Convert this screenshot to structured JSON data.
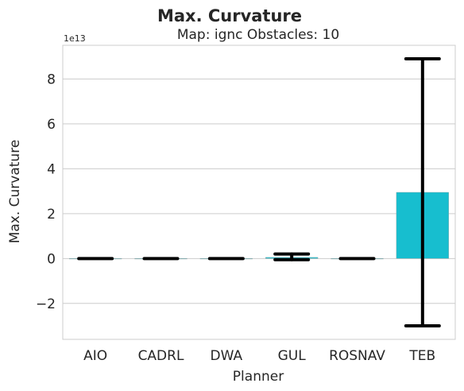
{
  "chart_data": {
    "type": "bar",
    "title": "Max. Curvature",
    "subtitle": "Map: ignc Obstacles: 10",
    "xlabel": "Planner",
    "ylabel": "Max. Curvature",
    "y_offset_label": "1e13",
    "categories": [
      "AIO",
      "CADRL",
      "DWA",
      "GUL",
      "ROSNAV",
      "TEB"
    ],
    "values": [
      0,
      0,
      0,
      0.05,
      0,
      2.95
    ],
    "error_low": [
      0,
      0,
      0,
      -0.05,
      0,
      -3.0
    ],
    "error_high": [
      0,
      0,
      0,
      0.2,
      0,
      8.9
    ],
    "yticks": [
      -2,
      0,
      2,
      4,
      6,
      8
    ],
    "ytick_labels": [
      "−2",
      "0",
      "2",
      "4",
      "6",
      "8"
    ],
    "ylim": [
      -3.6,
      9.5
    ],
    "grid": true,
    "bar_color": "#17becf",
    "errorbar_color": "#000000"
  }
}
